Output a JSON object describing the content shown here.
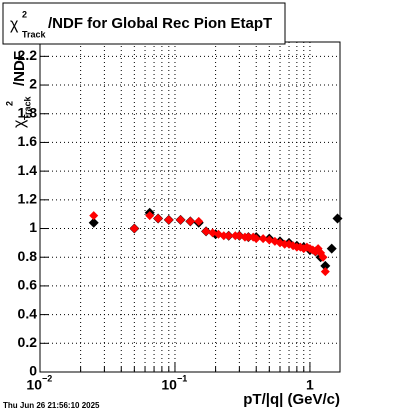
{
  "chart_data": {
    "type": "scatter",
    "title": {
      "symbol": "χ",
      "sup": "2",
      "sub": "Track",
      "text": "/NDF for Global Rec Pion EtapT"
    },
    "y_label": {
      "symbol": "χ",
      "sup": "2",
      "sub": "Track",
      "text": "/NDF"
    },
    "x_label": "pT/|q| (GeV/c)",
    "date": "Thu Jun 26 21:56:10 2025",
    "log_x": true,
    "grid": true,
    "xlim": [
      0.01,
      1.67
    ],
    "ylim": [
      0,
      2.3
    ],
    "xticks": [
      {
        "value": 0.01,
        "label": "10",
        "exponent": "−2"
      },
      {
        "value": 0.1,
        "label": "10",
        "exponent": "−1"
      },
      1
    ],
    "xminorticks": [
      0.02,
      0.03,
      0.04,
      0.05,
      0.06,
      0.07,
      0.08,
      0.09,
      0.2,
      0.3,
      0.4,
      0.5,
      0.6,
      0.7,
      0.8,
      0.9
    ],
    "yticks": [
      0,
      0.2,
      0.4,
      0.6,
      0.8,
      1,
      1.2,
      1.4,
      1.6,
      1.8,
      2,
      2.2
    ],
    "series": [
      {
        "color": "#000000",
        "x": [
          0.025,
          0.05,
          0.065,
          0.075,
          0.09,
          0.11,
          0.13,
          0.15,
          0.17,
          0.2,
          0.25,
          0.3,
          0.35,
          0.4,
          0.5,
          0.6,
          0.7,
          0.8,
          0.9,
          1.0,
          1.1,
          1.2,
          1.3,
          1.45,
          1.6
        ],
        "values": [
          1.04,
          1.0,
          1.11,
          1.07,
          1.06,
          1.06,
          1.05,
          1.04,
          0.98,
          0.96,
          0.95,
          0.95,
          0.94,
          0.94,
          0.93,
          0.91,
          0.9,
          0.88,
          0.87,
          0.85,
          0.84,
          0.8,
          0.74,
          0.86,
          1.07
        ]
      },
      {
        "color": "#ff0000",
        "x": [
          0.025,
          0.05,
          0.065,
          0.075,
          0.09,
          0.11,
          0.13,
          0.15,
          0.17,
          0.19,
          0.21,
          0.23,
          0.25,
          0.28,
          0.3,
          0.33,
          0.35,
          0.38,
          0.4,
          0.45,
          0.5,
          0.55,
          0.6,
          0.65,
          0.7,
          0.75,
          0.8,
          0.85,
          0.9,
          0.95,
          1.0,
          1.05,
          1.1,
          1.15,
          1.2,
          1.25,
          1.3
        ],
        "values": [
          1.09,
          1.0,
          1.09,
          1.07,
          1.06,
          1.06,
          1.05,
          1.05,
          0.98,
          0.97,
          0.96,
          0.95,
          0.95,
          0.95,
          0.95,
          0.94,
          0.94,
          0.94,
          0.93,
          0.93,
          0.92,
          0.91,
          0.9,
          0.89,
          0.89,
          0.88,
          0.87,
          0.87,
          0.86,
          0.87,
          0.86,
          0.85,
          0.84,
          0.86,
          0.83,
          0.8,
          0.7
        ]
      }
    ]
  }
}
